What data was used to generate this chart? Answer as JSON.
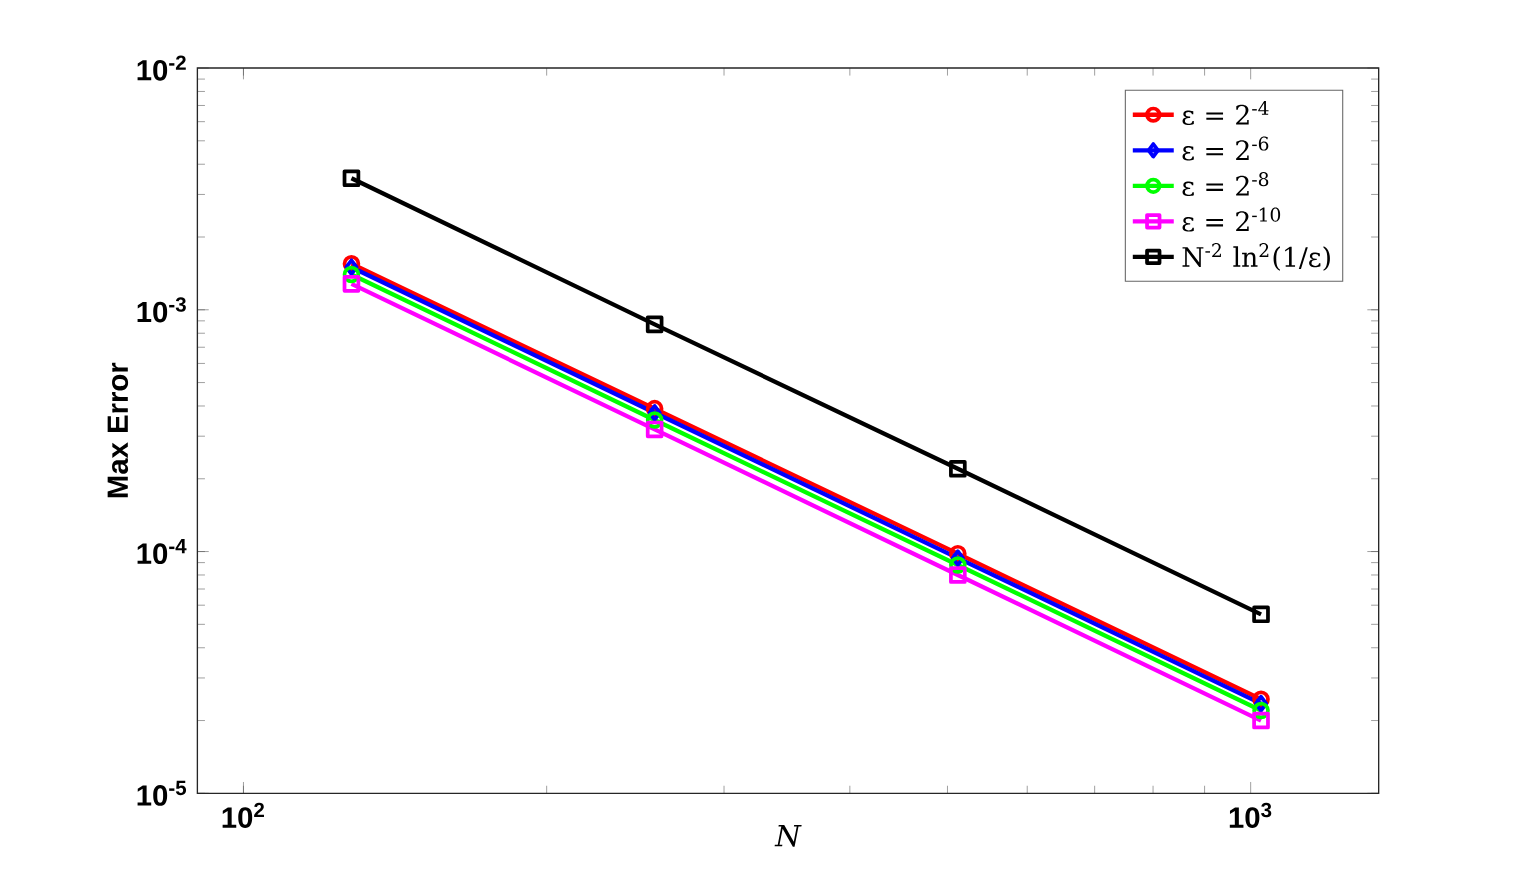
{
  "chart_data": {
    "type": "line",
    "xlabel": "N",
    "ylabel": "Max Error",
    "x": [
      128,
      256,
      512,
      1024
    ],
    "series": [
      {
        "name": "ε = 2$^{-4}$",
        "color": "#ff0000",
        "marker": "circle",
        "values": [
          0.00155,
          0.00039,
          9.8e-05,
          2.45e-05
        ]
      },
      {
        "name": "ε = 2$^{-6}$",
        "color": "#0000ff",
        "marker": "diamond",
        "values": [
          0.0015,
          0.000375,
          9.4e-05,
          2.35e-05
        ]
      },
      {
        "name": "ε = 2$^{-8}$",
        "color": "#00ff00",
        "marker": "circle",
        "values": [
          0.0014,
          0.00035,
          8.8e-05,
          2.2e-05
        ]
      },
      {
        "name": "ε = 2$^{-10}$",
        "color": "#ff00ff",
        "marker": "square",
        "values": [
          0.00128,
          0.00032,
          8e-05,
          2e-05
        ]
      },
      {
        "name": "N$^{-2}$ ln$^{2}$(1/ε)",
        "color": "#000000",
        "marker": "square",
        "values": [
          0.0035,
          0.00087,
          0.00022,
          5.5e-05
        ]
      }
    ],
    "log": "xy",
    "xlim": [
      90,
      1340
    ],
    "ylim": [
      1e-05,
      0.01
    ],
    "xticks": [
      {
        "value": 100,
        "label": "10$^{2}$"
      },
      {
        "value": 1000,
        "label": "10$^{3}$"
      }
    ],
    "yticks": [
      {
        "value": 1e-05,
        "label": "10$^{-5}$"
      },
      {
        "value": 0.0001,
        "label": "10$^{-4}$"
      },
      {
        "value": 0.001,
        "label": "10$^{-3}$"
      },
      {
        "value": 0.01,
        "label": "10$^{-2}$"
      }
    ],
    "grid": false,
    "legend": "top right",
    "line_style": "solid"
  }
}
